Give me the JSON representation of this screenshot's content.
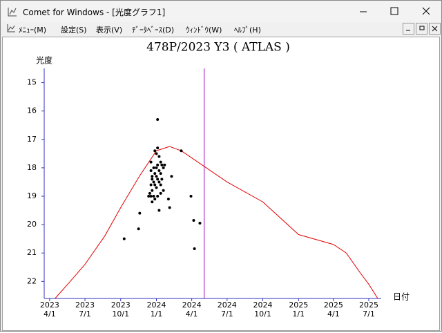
{
  "window": {
    "title": "Comet for Windows - [光度グラフ1]",
    "menu": [
      "ﾒﾆｭｰ(M)",
      "設定(S)",
      "表示(V)",
      "ﾃﾞｰﾀﾍﾞｰｽ(D)",
      "ｳｨﾝﾄﾞｳ(W)",
      "ﾍﾙﾌﾟ(H)"
    ]
  },
  "chart_data": {
    "type": "scatter",
    "title": "478P/2023 Y3 ( ATLAS )",
    "y_label": "光度",
    "x_label": "日付",
    "ylim": [
      22.6,
      14.5
    ],
    "yticks": [
      15,
      16,
      17,
      18,
      19,
      20,
      21,
      22
    ],
    "xlim": [
      "2023-03-18",
      "2025-08-02"
    ],
    "xticks": [
      {
        "value": "2023-04-01",
        "label": [
          "2023",
          "4/1"
        ]
      },
      {
        "value": "2023-07-01",
        "label": [
          "2023",
          "7/1"
        ]
      },
      {
        "value": "2023-10-01",
        "label": [
          "2023",
          "10/1"
        ]
      },
      {
        "value": "2024-01-01",
        "label": [
          "2024",
          "1/1"
        ]
      },
      {
        "value": "2024-04-01",
        "label": [
          "2024",
          "4/1"
        ]
      },
      {
        "value": "2024-07-01",
        "label": [
          "2024",
          "7/1"
        ]
      },
      {
        "value": "2024-10-01",
        "label": [
          "2024",
          "10/1"
        ]
      },
      {
        "value": "2025-01-01",
        "label": [
          "2025",
          "1/1"
        ]
      },
      {
        "value": "2025-04-01",
        "label": [
          "2025",
          "4/1"
        ]
      },
      {
        "value": "2025-07-01",
        "label": [
          "2025",
          "7/1"
        ]
      }
    ],
    "marker_date": "2024-05-03",
    "marker_color": "#a000c0",
    "axis_color": "#3030c0",
    "series": [
      {
        "type": "line",
        "color": "#e00000",
        "x": [
          "2023-04-15",
          "2023-05-24",
          "2023-07-01",
          "2023-08-21",
          "2023-10-01",
          "2023-11-18",
          "2024-01-01",
          "2024-02-04",
          "2024-03-05",
          "2024-05-03",
          "2024-07-01",
          "2024-10-01",
          "2025-01-01",
          "2025-04-01",
          "2025-05-04",
          "2025-06-09",
          "2025-07-01",
          "2025-07-24"
        ],
        "values": [
          22.6,
          22.0,
          21.4,
          20.4,
          19.4,
          18.3,
          17.4,
          17.25,
          17.4,
          17.95,
          18.5,
          19.2,
          20.35,
          20.7,
          21.0,
          21.7,
          22.1,
          22.6
        ]
      },
      {
        "type": "scatter",
        "color": "#000000",
        "x": [
          "2023-10-10",
          "2023-11-16",
          "2023-11-19",
          "2023-12-12",
          "2023-12-15",
          "2023-12-18",
          "2023-12-18",
          "2023-12-18",
          "2023-12-18",
          "2023-12-21",
          "2023-12-21",
          "2023-12-21",
          "2023-12-21",
          "2023-12-25",
          "2023-12-25",
          "2023-12-25",
          "2023-12-28",
          "2023-12-28",
          "2023-12-28",
          "2023-12-28",
          "2024-01-01",
          "2024-01-01",
          "2024-01-01",
          "2024-01-01",
          "2024-01-04",
          "2024-01-04",
          "2024-01-04",
          "2024-01-04",
          "2024-01-04",
          "2024-01-08",
          "2024-01-08",
          "2024-01-08",
          "2024-01-08",
          "2024-01-12",
          "2024-01-12",
          "2024-01-12",
          "2024-01-12",
          "2024-01-15",
          "2024-01-15",
          "2024-01-19",
          "2024-01-19",
          "2024-01-22",
          "2024-02-01",
          "2024-02-04",
          "2024-02-09",
          "2024-03-05",
          "2024-03-30",
          "2024-04-06",
          "2024-04-08",
          "2024-04-22"
        ],
        "values": [
          20.5,
          20.15,
          19.6,
          19.0,
          18.9,
          18.6,
          19.0,
          18.1,
          17.8,
          18.4,
          18.8,
          19.2,
          18.3,
          18.0,
          18.5,
          19.0,
          17.4,
          18.2,
          18.6,
          19.1,
          17.5,
          18.0,
          18.3,
          18.7,
          16.3,
          17.3,
          17.9,
          18.4,
          19.0,
          17.6,
          18.1,
          18.5,
          19.5,
          17.8,
          18.2,
          18.6,
          18.9,
          17.9,
          18.4,
          18.0,
          18.8,
          17.9,
          19.1,
          19.4,
          18.3,
          17.4,
          19.0,
          19.85,
          20.85,
          19.95
        ]
      }
    ]
  }
}
